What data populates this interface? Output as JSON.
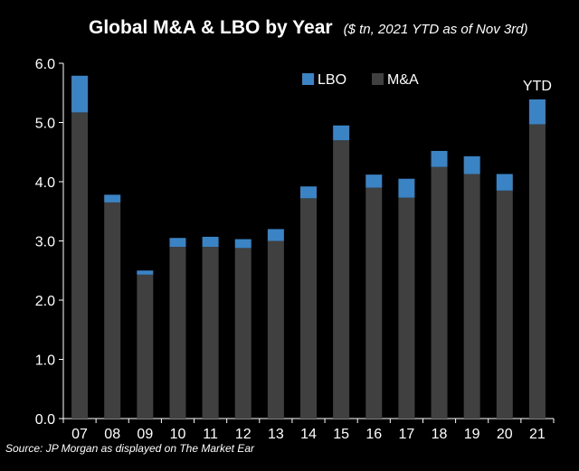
{
  "chart_data": {
    "type": "bar",
    "stacked": true,
    "title": "Global M&A & LBO by Year",
    "subtitle": "($ tn, 2021 YTD as of Nov 3rd)",
    "xlabel": "",
    "ylabel": "",
    "categories": [
      "07",
      "08",
      "09",
      "10",
      "11",
      "12",
      "13",
      "14",
      "15",
      "16",
      "17",
      "18",
      "19",
      "20",
      "21"
    ],
    "series": [
      {
        "name": "M&A",
        "color": "#404040",
        "values": [
          5.17,
          3.65,
          2.43,
          2.9,
          2.9,
          2.88,
          3.0,
          3.72,
          4.7,
          3.9,
          3.73,
          4.25,
          4.13,
          3.85,
          4.97
        ]
      },
      {
        "name": "LBO",
        "color": "#3a83c4",
        "values": [
          0.62,
          0.13,
          0.07,
          0.15,
          0.17,
          0.15,
          0.2,
          0.2,
          0.25,
          0.22,
          0.32,
          0.27,
          0.3,
          0.28,
          0.42
        ]
      }
    ],
    "ylim": [
      0,
      6
    ],
    "yticks": [
      "0.0",
      "1.0",
      "2.0",
      "3.0",
      "4.0",
      "5.0",
      "6.0"
    ],
    "legend": {
      "position": "top-center",
      "order": [
        "LBO",
        "M&A"
      ]
    },
    "annotations": [
      {
        "text": "YTD",
        "category": "21"
      }
    ],
    "grid": false
  },
  "source_note": "Source: JP Morgan as displayed on The Market Ear"
}
